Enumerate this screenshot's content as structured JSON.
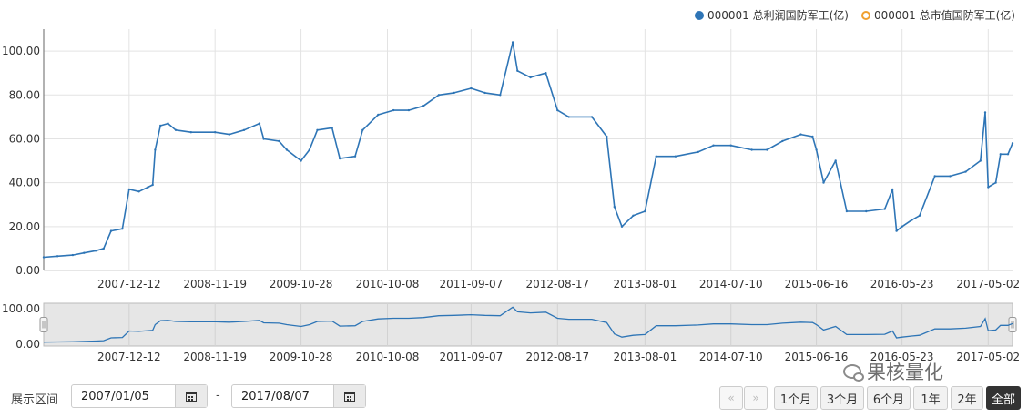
{
  "legend": [
    {
      "label": "000001 总利润国防军工(亿)",
      "color": "#2e75b6",
      "style": "filled"
    },
    {
      "label": "000001 总市值国防军工(亿)",
      "color": "#f0a030",
      "style": "hollow"
    }
  ],
  "controls": {
    "range_label": "展示区间",
    "start_date": "2007/01/05",
    "end_date": "2017/08/07",
    "separator": "-",
    "buttons": [
      "1个月",
      "3个月",
      "6个月",
      "1年",
      "2年",
      "全部"
    ],
    "active_button": "全部",
    "nav_prev": "«",
    "nav_next": "»"
  },
  "watermark": "果核量化",
  "chart_data": {
    "type": "line",
    "xlim": [
      "2007-01-05",
      "2017-08-07"
    ],
    "ylim": [
      0,
      110
    ],
    "yticks": [
      "0.00",
      "20.00",
      "40.00",
      "60.00",
      "80.00",
      "100.00"
    ],
    "xticks": [
      "2007-12-12",
      "2008-11-19",
      "2009-10-28",
      "2010-10-08",
      "2011-09-07",
      "2012-08-17",
      "2013-08-01",
      "2014-07-10",
      "2015-06-16",
      "2016-05-23",
      "2017-05-02"
    ],
    "navigator_yticks": [
      "0.00",
      "100.00"
    ],
    "grid": true,
    "legend_position": "top-right",
    "series": [
      {
        "name": "000001 总利润国防军工(亿)",
        "color": "#2e75b6",
        "points": [
          [
            "2007-01-05",
            6
          ],
          [
            "2007-03-01",
            6.5
          ],
          [
            "2007-05-01",
            7
          ],
          [
            "2007-06-15",
            8
          ],
          [
            "2007-08-01",
            9
          ],
          [
            "2007-09-01",
            10
          ],
          [
            "2007-10-01",
            18
          ],
          [
            "2007-11-15",
            19
          ],
          [
            "2007-12-12",
            37
          ],
          [
            "2008-01-20",
            36
          ],
          [
            "2008-02-25",
            38
          ],
          [
            "2008-03-15",
            39
          ],
          [
            "2008-03-25",
            55
          ],
          [
            "2008-04-15",
            66
          ],
          [
            "2008-05-15",
            67
          ],
          [
            "2008-06-15",
            64
          ],
          [
            "2008-08-15",
            63
          ],
          [
            "2008-11-19",
            63
          ],
          [
            "2009-01-15",
            62
          ],
          [
            "2009-03-15",
            64
          ],
          [
            "2009-05-15",
            67
          ],
          [
            "2009-06-01",
            60
          ],
          [
            "2009-08-01",
            59
          ],
          [
            "2009-09-01",
            55
          ],
          [
            "2009-10-28",
            50
          ],
          [
            "2009-12-01",
            55
          ],
          [
            "2010-01-01",
            64
          ],
          [
            "2010-03-01",
            65
          ],
          [
            "2010-04-01",
            51
          ],
          [
            "2010-06-01",
            52
          ],
          [
            "2010-07-01",
            64
          ],
          [
            "2010-09-01",
            71
          ],
          [
            "2010-11-01",
            73
          ],
          [
            "2011-01-01",
            73
          ],
          [
            "2011-03-01",
            75
          ],
          [
            "2011-05-01",
            80
          ],
          [
            "2011-07-01",
            81
          ],
          [
            "2011-09-07",
            83
          ],
          [
            "2011-11-01",
            81
          ],
          [
            "2012-01-01",
            80
          ],
          [
            "2012-02-20",
            104
          ],
          [
            "2012-03-10",
            91
          ],
          [
            "2012-05-01",
            88
          ],
          [
            "2012-07-01",
            90
          ],
          [
            "2012-08-17",
            73
          ],
          [
            "2012-10-01",
            70
          ],
          [
            "2013-01-01",
            70
          ],
          [
            "2013-03-01",
            61
          ],
          [
            "2013-04-01",
            29
          ],
          [
            "2013-05-01",
            20
          ],
          [
            "2013-06-15",
            25
          ],
          [
            "2013-08-01",
            27
          ],
          [
            "2013-09-15",
            52
          ],
          [
            "2013-12-01",
            52
          ],
          [
            "2014-03-01",
            54
          ],
          [
            "2014-05-01",
            57
          ],
          [
            "2014-07-10",
            57
          ],
          [
            "2014-10-01",
            55
          ],
          [
            "2014-12-01",
            55
          ],
          [
            "2015-02-01",
            59
          ],
          [
            "2015-04-15",
            62
          ],
          [
            "2015-06-01",
            61
          ],
          [
            "2015-06-16",
            55
          ],
          [
            "2015-07-15",
            40
          ],
          [
            "2015-09-01",
            50
          ],
          [
            "2015-10-15",
            27
          ],
          [
            "2016-01-01",
            27
          ],
          [
            "2016-03-15",
            28
          ],
          [
            "2016-04-15",
            37
          ],
          [
            "2016-05-01",
            18
          ],
          [
            "2016-05-23",
            20
          ],
          [
            "2016-07-01",
            23
          ],
          [
            "2016-08-01",
            25
          ],
          [
            "2016-10-01",
            43
          ],
          [
            "2016-12-01",
            43
          ],
          [
            "2017-02-01",
            45
          ],
          [
            "2017-04-01",
            50
          ],
          [
            "2017-04-20",
            72
          ],
          [
            "2017-05-02",
            38
          ],
          [
            "2017-06-01",
            40
          ],
          [
            "2017-06-20",
            53
          ],
          [
            "2017-07-20",
            53
          ],
          [
            "2017-08-07",
            58
          ]
        ]
      }
    ]
  }
}
